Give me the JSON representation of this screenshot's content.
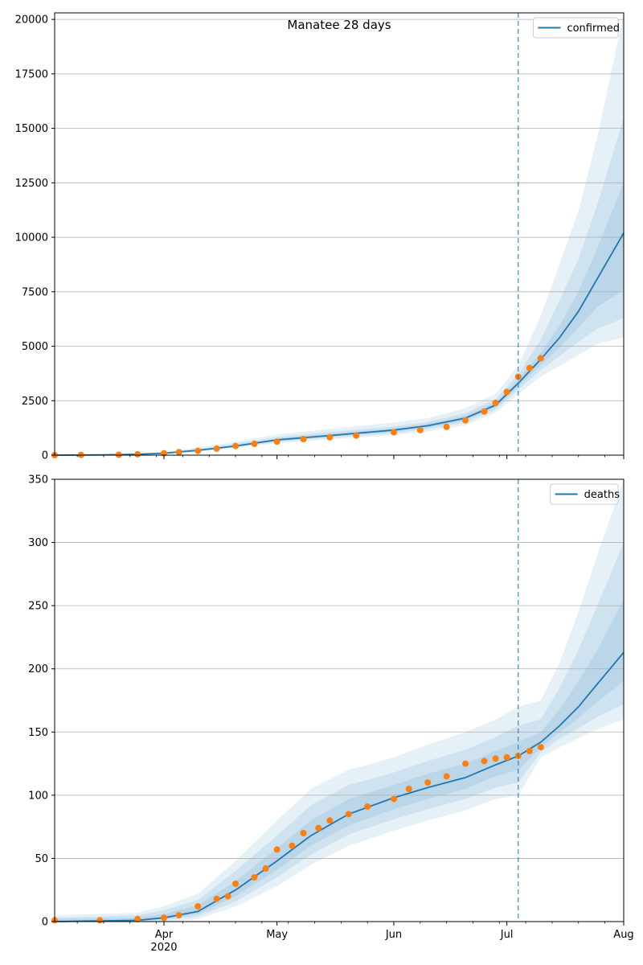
{
  "colors": {
    "line": "#1f77b4",
    "observed": "#ff7f0e",
    "band": "#1f77b4",
    "grid": "#b0b0b0",
    "vline": "#1f77b4"
  },
  "x_ticks": [
    {
      "date": "2020-04-01",
      "label": "Apr",
      "sublabel": "2020"
    },
    {
      "date": "2020-05-01",
      "label": "May",
      "sublabel": ""
    },
    {
      "date": "2020-06-01",
      "label": "Jun",
      "sublabel": ""
    },
    {
      "date": "2020-07-01",
      "label": "Jul",
      "sublabel": ""
    },
    {
      "date": "2020-08-01",
      "label": "Aug",
      "sublabel": ""
    }
  ],
  "chart_data": [
    {
      "type": "line",
      "title": "Manatee 28 days",
      "legend": {
        "label": "confirmed",
        "placement": "top-right"
      },
      "xlim": [
        "2020-03-03",
        "2020-08-01"
      ],
      "ylim": [
        0,
        20300
      ],
      "yticks": [
        0,
        2500,
        5000,
        7500,
        10000,
        12500,
        15000,
        17500,
        20000
      ],
      "grid": "y",
      "forecast_start": "2020-07-04",
      "model": {
        "x": [
          "2020-03-03",
          "2020-03-15",
          "2020-03-25",
          "2020-04-01",
          "2020-04-10",
          "2020-04-20",
          "2020-05-01",
          "2020-05-15",
          "2020-06-01",
          "2020-06-10",
          "2020-06-20",
          "2020-06-28",
          "2020-07-04",
          "2020-07-10",
          "2020-07-15",
          "2020-07-20",
          "2020-07-25",
          "2020-08-01"
        ],
        "median": [
          0,
          10,
          40,
          90,
          220,
          420,
          700,
          900,
          1150,
          1350,
          1700,
          2300,
          3300,
          4400,
          5400,
          6600,
          8100,
          10200
        ],
        "bands": [
          {
            "lower": [
              0,
              0,
              20,
              50,
              150,
              330,
              550,
              720,
              920,
              1080,
              1380,
              1950,
              2800,
              3600,
              4100,
              4600,
              5100,
              5400
            ],
            "upper": [
              5,
              30,
              80,
              160,
              350,
              620,
              950,
              1200,
              1500,
              1700,
              2150,
              2800,
              4100,
              6400,
              8800,
              11200,
              14600,
              20300
            ]
          },
          {
            "lower": [
              0,
              2,
              28,
              65,
              180,
              370,
              610,
              790,
              1010,
              1190,
              1510,
              2080,
              3000,
              3900,
              4550,
              5200,
              5800,
              6300
            ],
            "upper": [
              2,
              20,
              60,
              125,
              290,
              530,
              830,
              1060,
              1320,
              1530,
              1930,
              2570,
              3700,
              5300,
              7100,
              9000,
              11500,
              15500
            ]
          },
          {
            "lower": [
              0,
              6,
              34,
              78,
              200,
              395,
              660,
              850,
              1080,
              1270,
              1610,
              2190,
              3150,
              4150,
              4950,
              5850,
              6800,
              7600
            ],
            "upper": [
              1,
              14,
              48,
              105,
              250,
              460,
              760,
              970,
              1230,
              1440,
              1800,
              2420,
              3480,
              4700,
              5950,
              7500,
              9500,
              12500
            ]
          }
        ]
      },
      "observed": {
        "x": [
          "2020-03-03",
          "2020-03-10",
          "2020-03-20",
          "2020-03-25",
          "2020-04-01",
          "2020-04-05",
          "2020-04-10",
          "2020-04-15",
          "2020-04-20",
          "2020-04-25",
          "2020-05-01",
          "2020-05-08",
          "2020-05-15",
          "2020-05-22",
          "2020-06-01",
          "2020-06-08",
          "2020-06-15",
          "2020-06-20",
          "2020-06-25",
          "2020-06-28",
          "2020-07-01",
          "2020-07-04",
          "2020-07-07",
          "2020-07-10"
        ],
        "values": [
          0,
          10,
          20,
          40,
          90,
          140,
          200,
          300,
          420,
          520,
          620,
          740,
          820,
          900,
          1050,
          1150,
          1300,
          1600,
          2000,
          2400,
          2900,
          3600,
          4000,
          4450
        ]
      }
    },
    {
      "type": "line",
      "title": "",
      "legend": {
        "label": "deaths",
        "placement": "top-right"
      },
      "xlim": [
        "2020-03-03",
        "2020-08-01"
      ],
      "ylim": [
        0,
        350
      ],
      "yticks": [
        0,
        50,
        100,
        150,
        200,
        250,
        300,
        350
      ],
      "grid": "y",
      "forecast_start": "2020-07-04",
      "model": {
        "x": [
          "2020-03-03",
          "2020-03-15",
          "2020-03-25",
          "2020-04-01",
          "2020-04-10",
          "2020-04-20",
          "2020-05-01",
          "2020-05-10",
          "2020-05-20",
          "2020-06-01",
          "2020-06-10",
          "2020-06-20",
          "2020-06-28",
          "2020-07-04",
          "2020-07-10",
          "2020-07-15",
          "2020-07-20",
          "2020-07-25",
          "2020-08-01"
        ],
        "median": [
          0,
          0.5,
          1,
          3,
          8,
          25,
          48,
          68,
          85,
          98,
          106,
          114,
          124,
          131,
          142,
          155,
          170,
          188,
          213
        ],
        "bands": [
          {
            "lower": [
              0,
              0,
              0,
              0,
              2,
              12,
              28,
              45,
              60,
              72,
              80,
              88,
              97,
              100,
              130,
              138,
              145,
              152,
              160
            ],
            "upper": [
              5,
              6,
              7,
              12,
              22,
              48,
              80,
              105,
              120,
              130,
              140,
              150,
              160,
              170,
              175,
              205,
              245,
              290,
              350
            ]
          },
          {
            "lower": [
              0,
              0,
              0,
              1,
              4,
              16,
              35,
              53,
              69,
              81,
              89,
              97,
              106,
              110,
              134,
              145,
              153,
              162,
              172
            ],
            "upper": [
              3,
              4,
              5,
              9,
              17,
              40,
              68,
              92,
              108,
              118,
              127,
              136,
              146,
              155,
              160,
              185,
              215,
              250,
              300
            ]
          },
          {
            "lower": [
              0,
              0,
              0.5,
              2,
              6,
              20,
              41,
              60,
              76,
              89,
              97,
              105,
              115,
              120,
              138,
              150,
              161,
              174,
              190
            ],
            "upper": [
              2,
              2.5,
              3,
              6,
              13,
              32,
              58,
              80,
              97,
              108,
              117,
              125,
              135,
              142,
              150,
              168,
              190,
              215,
              255
            ]
          }
        ]
      },
      "observed": {
        "x": [
          "2020-03-03",
          "2020-03-15",
          "2020-03-25",
          "2020-04-01",
          "2020-04-05",
          "2020-04-10",
          "2020-04-15",
          "2020-04-18",
          "2020-04-20",
          "2020-04-25",
          "2020-04-28",
          "2020-05-01",
          "2020-05-05",
          "2020-05-08",
          "2020-05-12",
          "2020-05-15",
          "2020-05-20",
          "2020-05-25",
          "2020-06-01",
          "2020-06-05",
          "2020-06-10",
          "2020-06-15",
          "2020-06-20",
          "2020-06-25",
          "2020-06-28",
          "2020-07-01",
          "2020-07-04",
          "2020-07-07",
          "2020-07-10"
        ],
        "values": [
          1,
          1,
          2,
          3,
          5,
          12,
          18,
          20,
          30,
          35,
          42,
          57,
          60,
          70,
          74,
          80,
          85,
          91,
          97,
          105,
          110,
          115,
          125,
          127,
          129,
          130,
          131,
          135,
          138
        ]
      }
    }
  ]
}
